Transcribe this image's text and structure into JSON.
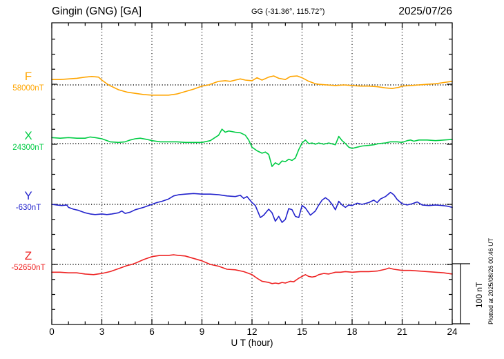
{
  "header": {
    "station": "Gingin (GNG)  [GA]",
    "coords": "GG (-31.36°, 115.72°)",
    "date": "2025/07/26"
  },
  "x_axis": {
    "label": "U T (hour)",
    "ticks": [
      0,
      3,
      6,
      9,
      12,
      15,
      18,
      21,
      24
    ],
    "min": 0,
    "max": 24
  },
  "scale_bar": {
    "label": "100 nT"
  },
  "plot_note": "Plotted at 2025/08/26 00:46 UT",
  "chart_data": {
    "type": "line",
    "title": "Gingin (GNG) [GA] magnetogram 2025/07/26",
    "xlabel": "U T (hour)",
    "x_range": [
      0,
      24
    ],
    "grid": "vertical dotted gridlines every 3 h; dotted zero baseline per channel",
    "amplitude_scale": "100 nT scale bar; values are nT offsets from each channel baseline",
    "legend_position": "left margin channel labels",
    "series": [
      {
        "name": "F",
        "baseline_label": "58000nT",
        "baseline_value_nT": 58000,
        "color": "#FFA500",
        "points": [
          [
            0,
            9
          ],
          [
            0.5,
            9
          ],
          [
            1,
            10
          ],
          [
            1.5,
            11
          ],
          [
            2,
            13
          ],
          [
            2.4,
            14
          ],
          [
            2.8,
            13
          ],
          [
            3,
            8
          ],
          [
            3.4,
            0
          ],
          [
            4,
            -8
          ],
          [
            4.5,
            -12
          ],
          [
            5,
            -14
          ],
          [
            5.5,
            -16
          ],
          [
            6,
            -17
          ],
          [
            6.5,
            -17
          ],
          [
            7,
            -17
          ],
          [
            7.5,
            -15
          ],
          [
            8,
            -11
          ],
          [
            8.5,
            -7
          ],
          [
            9,
            -2
          ],
          [
            9.4,
            0
          ],
          [
            9.8,
            4
          ],
          [
            10,
            6
          ],
          [
            10.4,
            7
          ],
          [
            10.7,
            6
          ],
          [
            11,
            8
          ],
          [
            11.3,
            10
          ],
          [
            11.6,
            8
          ],
          [
            12,
            7
          ],
          [
            12.3,
            12
          ],
          [
            12.6,
            8
          ],
          [
            13,
            13
          ],
          [
            13.3,
            15
          ],
          [
            13.6,
            11
          ],
          [
            14,
            9
          ],
          [
            14.3,
            14
          ],
          [
            14.7,
            15
          ],
          [
            15,
            12
          ],
          [
            15.4,
            6
          ],
          [
            15.8,
            2
          ],
          [
            16,
            1
          ],
          [
            16.5,
            0
          ],
          [
            17,
            -1
          ],
          [
            17.5,
            0
          ],
          [
            18,
            -1
          ],
          [
            18.5,
            -2
          ],
          [
            19,
            -2
          ],
          [
            19.5,
            -3
          ],
          [
            20,
            -5
          ],
          [
            20.4,
            -6
          ],
          [
            20.8,
            -4
          ],
          [
            21,
            -2
          ],
          [
            21.5,
            -1
          ],
          [
            22,
            0
          ],
          [
            22.5,
            1
          ],
          [
            23,
            2
          ],
          [
            23.5,
            4
          ],
          [
            24,
            6
          ]
        ]
      },
      {
        "name": "X",
        "baseline_label": "24300nT",
        "baseline_value_nT": 24300,
        "color": "#00CC44",
        "points": [
          [
            0,
            10
          ],
          [
            0.5,
            9
          ],
          [
            1,
            10
          ],
          [
            1.5,
            9
          ],
          [
            2,
            9
          ],
          [
            2.3,
            11
          ],
          [
            2.6,
            10
          ],
          [
            3,
            8
          ],
          [
            3.5,
            3
          ],
          [
            4,
            2
          ],
          [
            4.4,
            3
          ],
          [
            4.7,
            6
          ],
          [
            5,
            8
          ],
          [
            5.3,
            9
          ],
          [
            5.7,
            7
          ],
          [
            6,
            5
          ],
          [
            6.5,
            3
          ],
          [
            7,
            3
          ],
          [
            7.5,
            3
          ],
          [
            8,
            2
          ],
          [
            8.5,
            2
          ],
          [
            9,
            2
          ],
          [
            9.5,
            5
          ],
          [
            10,
            14
          ],
          [
            10.2,
            24
          ],
          [
            10.4,
            19
          ],
          [
            10.6,
            21
          ],
          [
            11,
            19
          ],
          [
            11.3,
            18
          ],
          [
            11.6,
            14
          ],
          [
            11.8,
            6
          ],
          [
            12,
            -6
          ],
          [
            12.3,
            -12
          ],
          [
            12.6,
            -16
          ],
          [
            12.8,
            -14
          ],
          [
            13,
            -18
          ],
          [
            13.2,
            -38
          ],
          [
            13.4,
            -32
          ],
          [
            13.6,
            -35
          ],
          [
            13.8,
            -29
          ],
          [
            14,
            -30
          ],
          [
            14.2,
            -26
          ],
          [
            14.4,
            -28
          ],
          [
            14.6,
            -24
          ],
          [
            14.8,
            -10
          ],
          [
            15,
            1
          ],
          [
            15.2,
            6
          ],
          [
            15.4,
            0
          ],
          [
            15.6,
            1
          ],
          [
            15.8,
            -1
          ],
          [
            16,
            1
          ],
          [
            16.3,
            -1
          ],
          [
            16.6,
            1
          ],
          [
            17,
            -2
          ],
          [
            17.2,
            12
          ],
          [
            17.4,
            5
          ],
          [
            17.6,
            0
          ],
          [
            17.8,
            -6
          ],
          [
            18,
            -8
          ],
          [
            18.3,
            -6
          ],
          [
            18.6,
            -4
          ],
          [
            19,
            -3
          ],
          [
            19.3,
            -2
          ],
          [
            19.6,
            0
          ],
          [
            20,
            1
          ],
          [
            20.3,
            3
          ],
          [
            20.7,
            3
          ],
          [
            21,
            2
          ],
          [
            21.3,
            5
          ],
          [
            21.5,
            6
          ],
          [
            21.7,
            4
          ],
          [
            22,
            6
          ],
          [
            22.5,
            6
          ],
          [
            23,
            5
          ],
          [
            23.5,
            6
          ],
          [
            24,
            7
          ]
        ]
      },
      {
        "name": "Y",
        "baseline_label": "-630nT",
        "baseline_value_nT": -630,
        "color": "#2222CC",
        "points": [
          [
            0,
            0
          ],
          [
            0.3,
            -1
          ],
          [
            0.6,
            -2
          ],
          [
            0.9,
            -1
          ],
          [
            1,
            -5
          ],
          [
            1.3,
            -8
          ],
          [
            1.6,
            -10
          ],
          [
            2,
            -14
          ],
          [
            2.3,
            -16
          ],
          [
            2.6,
            -17
          ],
          [
            3,
            -16
          ],
          [
            3.3,
            -17
          ],
          [
            3.6,
            -16
          ],
          [
            4,
            -14
          ],
          [
            4.2,
            -11
          ],
          [
            4.4,
            -15
          ],
          [
            4.7,
            -13
          ],
          [
            5,
            -9
          ],
          [
            5.5,
            -5
          ],
          [
            6,
            0
          ],
          [
            6.3,
            3
          ],
          [
            6.6,
            5
          ],
          [
            7,
            9
          ],
          [
            7.3,
            14
          ],
          [
            7.6,
            16
          ],
          [
            8,
            17
          ],
          [
            8.5,
            18
          ],
          [
            9,
            17
          ],
          [
            9.5,
            17
          ],
          [
            10,
            16
          ],
          [
            10.5,
            14
          ],
          [
            11,
            13
          ],
          [
            11.3,
            15
          ],
          [
            11.5,
            10
          ],
          [
            11.7,
            13
          ],
          [
            12,
            3
          ],
          [
            12.2,
            -2
          ],
          [
            12.5,
            -22
          ],
          [
            12.7,
            -18
          ],
          [
            13,
            -8
          ],
          [
            13.2,
            -14
          ],
          [
            13.4,
            -28
          ],
          [
            13.6,
            -20
          ],
          [
            13.8,
            -30
          ],
          [
            14,
            -25
          ],
          [
            14.2,
            -7
          ],
          [
            14.4,
            -9
          ],
          [
            14.6,
            -20
          ],
          [
            14.8,
            -22
          ],
          [
            15,
            -2
          ],
          [
            15.2,
            -6
          ],
          [
            15.5,
            -18
          ],
          [
            15.8,
            -11
          ],
          [
            16,
            -1
          ],
          [
            16.2,
            7
          ],
          [
            16.4,
            11
          ],
          [
            16.6,
            7
          ],
          [
            16.8,
            0
          ],
          [
            17,
            -9
          ],
          [
            17.2,
            5
          ],
          [
            17.4,
            -1
          ],
          [
            17.6,
            -5
          ],
          [
            17.8,
            -1
          ],
          [
            18,
            -2
          ],
          [
            18.3,
            2
          ],
          [
            18.6,
            0
          ],
          [
            19,
            3
          ],
          [
            19.3,
            7
          ],
          [
            19.5,
            3
          ],
          [
            19.7,
            9
          ],
          [
            20,
            13
          ],
          [
            20.3,
            20
          ],
          [
            20.5,
            16
          ],
          [
            20.7,
            8
          ],
          [
            21,
            1
          ],
          [
            21.3,
            -1
          ],
          [
            21.6,
            1
          ],
          [
            21.9,
            4
          ],
          [
            22.2,
            -1
          ],
          [
            22.6,
            -2
          ],
          [
            23,
            -1
          ],
          [
            23.4,
            -2
          ],
          [
            23.7,
            -3
          ],
          [
            24,
            -5
          ]
        ]
      },
      {
        "name": "Z",
        "baseline_label": "-52650nT",
        "baseline_value_nT": -52650,
        "color": "#EE2222",
        "points": [
          [
            0,
            -13
          ],
          [
            0.5,
            -13
          ],
          [
            1,
            -14
          ],
          [
            1.5,
            -14
          ],
          [
            2,
            -16
          ],
          [
            2.5,
            -17
          ],
          [
            3,
            -15
          ],
          [
            3.5,
            -12
          ],
          [
            4,
            -7
          ],
          [
            4.5,
            -2
          ],
          [
            4.8,
            0
          ],
          [
            5,
            2
          ],
          [
            5.5,
            8
          ],
          [
            6,
            13
          ],
          [
            6.5,
            15
          ],
          [
            7,
            15
          ],
          [
            7.3,
            16
          ],
          [
            7.6,
            15
          ],
          [
            8,
            14
          ],
          [
            8.5,
            10
          ],
          [
            9,
            6
          ],
          [
            9.5,
            0
          ],
          [
            10,
            -3
          ],
          [
            10.5,
            -8
          ],
          [
            11,
            -9
          ],
          [
            11.5,
            -12
          ],
          [
            12,
            -17
          ],
          [
            12.3,
            -23
          ],
          [
            12.6,
            -28
          ],
          [
            13,
            -30
          ],
          [
            13.2,
            -32
          ],
          [
            13.4,
            -31
          ],
          [
            13.6,
            -32
          ],
          [
            13.8,
            -30
          ],
          [
            14,
            -31
          ],
          [
            14.3,
            -28
          ],
          [
            14.5,
            -29
          ],
          [
            14.8,
            -23
          ],
          [
            15,
            -20
          ],
          [
            15.2,
            -17
          ],
          [
            15.4,
            -20
          ],
          [
            15.6,
            -21
          ],
          [
            15.8,
            -20
          ],
          [
            16,
            -17
          ],
          [
            16.3,
            -15
          ],
          [
            16.6,
            -16
          ],
          [
            17,
            -13
          ],
          [
            17.3,
            -13
          ],
          [
            17.6,
            -12
          ],
          [
            18,
            -13
          ],
          [
            18.5,
            -12
          ],
          [
            19,
            -12
          ],
          [
            19.5,
            -11
          ],
          [
            20,
            -8
          ],
          [
            20.2,
            -6
          ],
          [
            20.5,
            -8
          ],
          [
            21,
            -10
          ],
          [
            21.5,
            -10
          ],
          [
            22,
            -11
          ],
          [
            22.5,
            -12
          ],
          [
            23,
            -13
          ],
          [
            23.5,
            -14
          ],
          [
            24,
            -16
          ]
        ]
      }
    ]
  }
}
